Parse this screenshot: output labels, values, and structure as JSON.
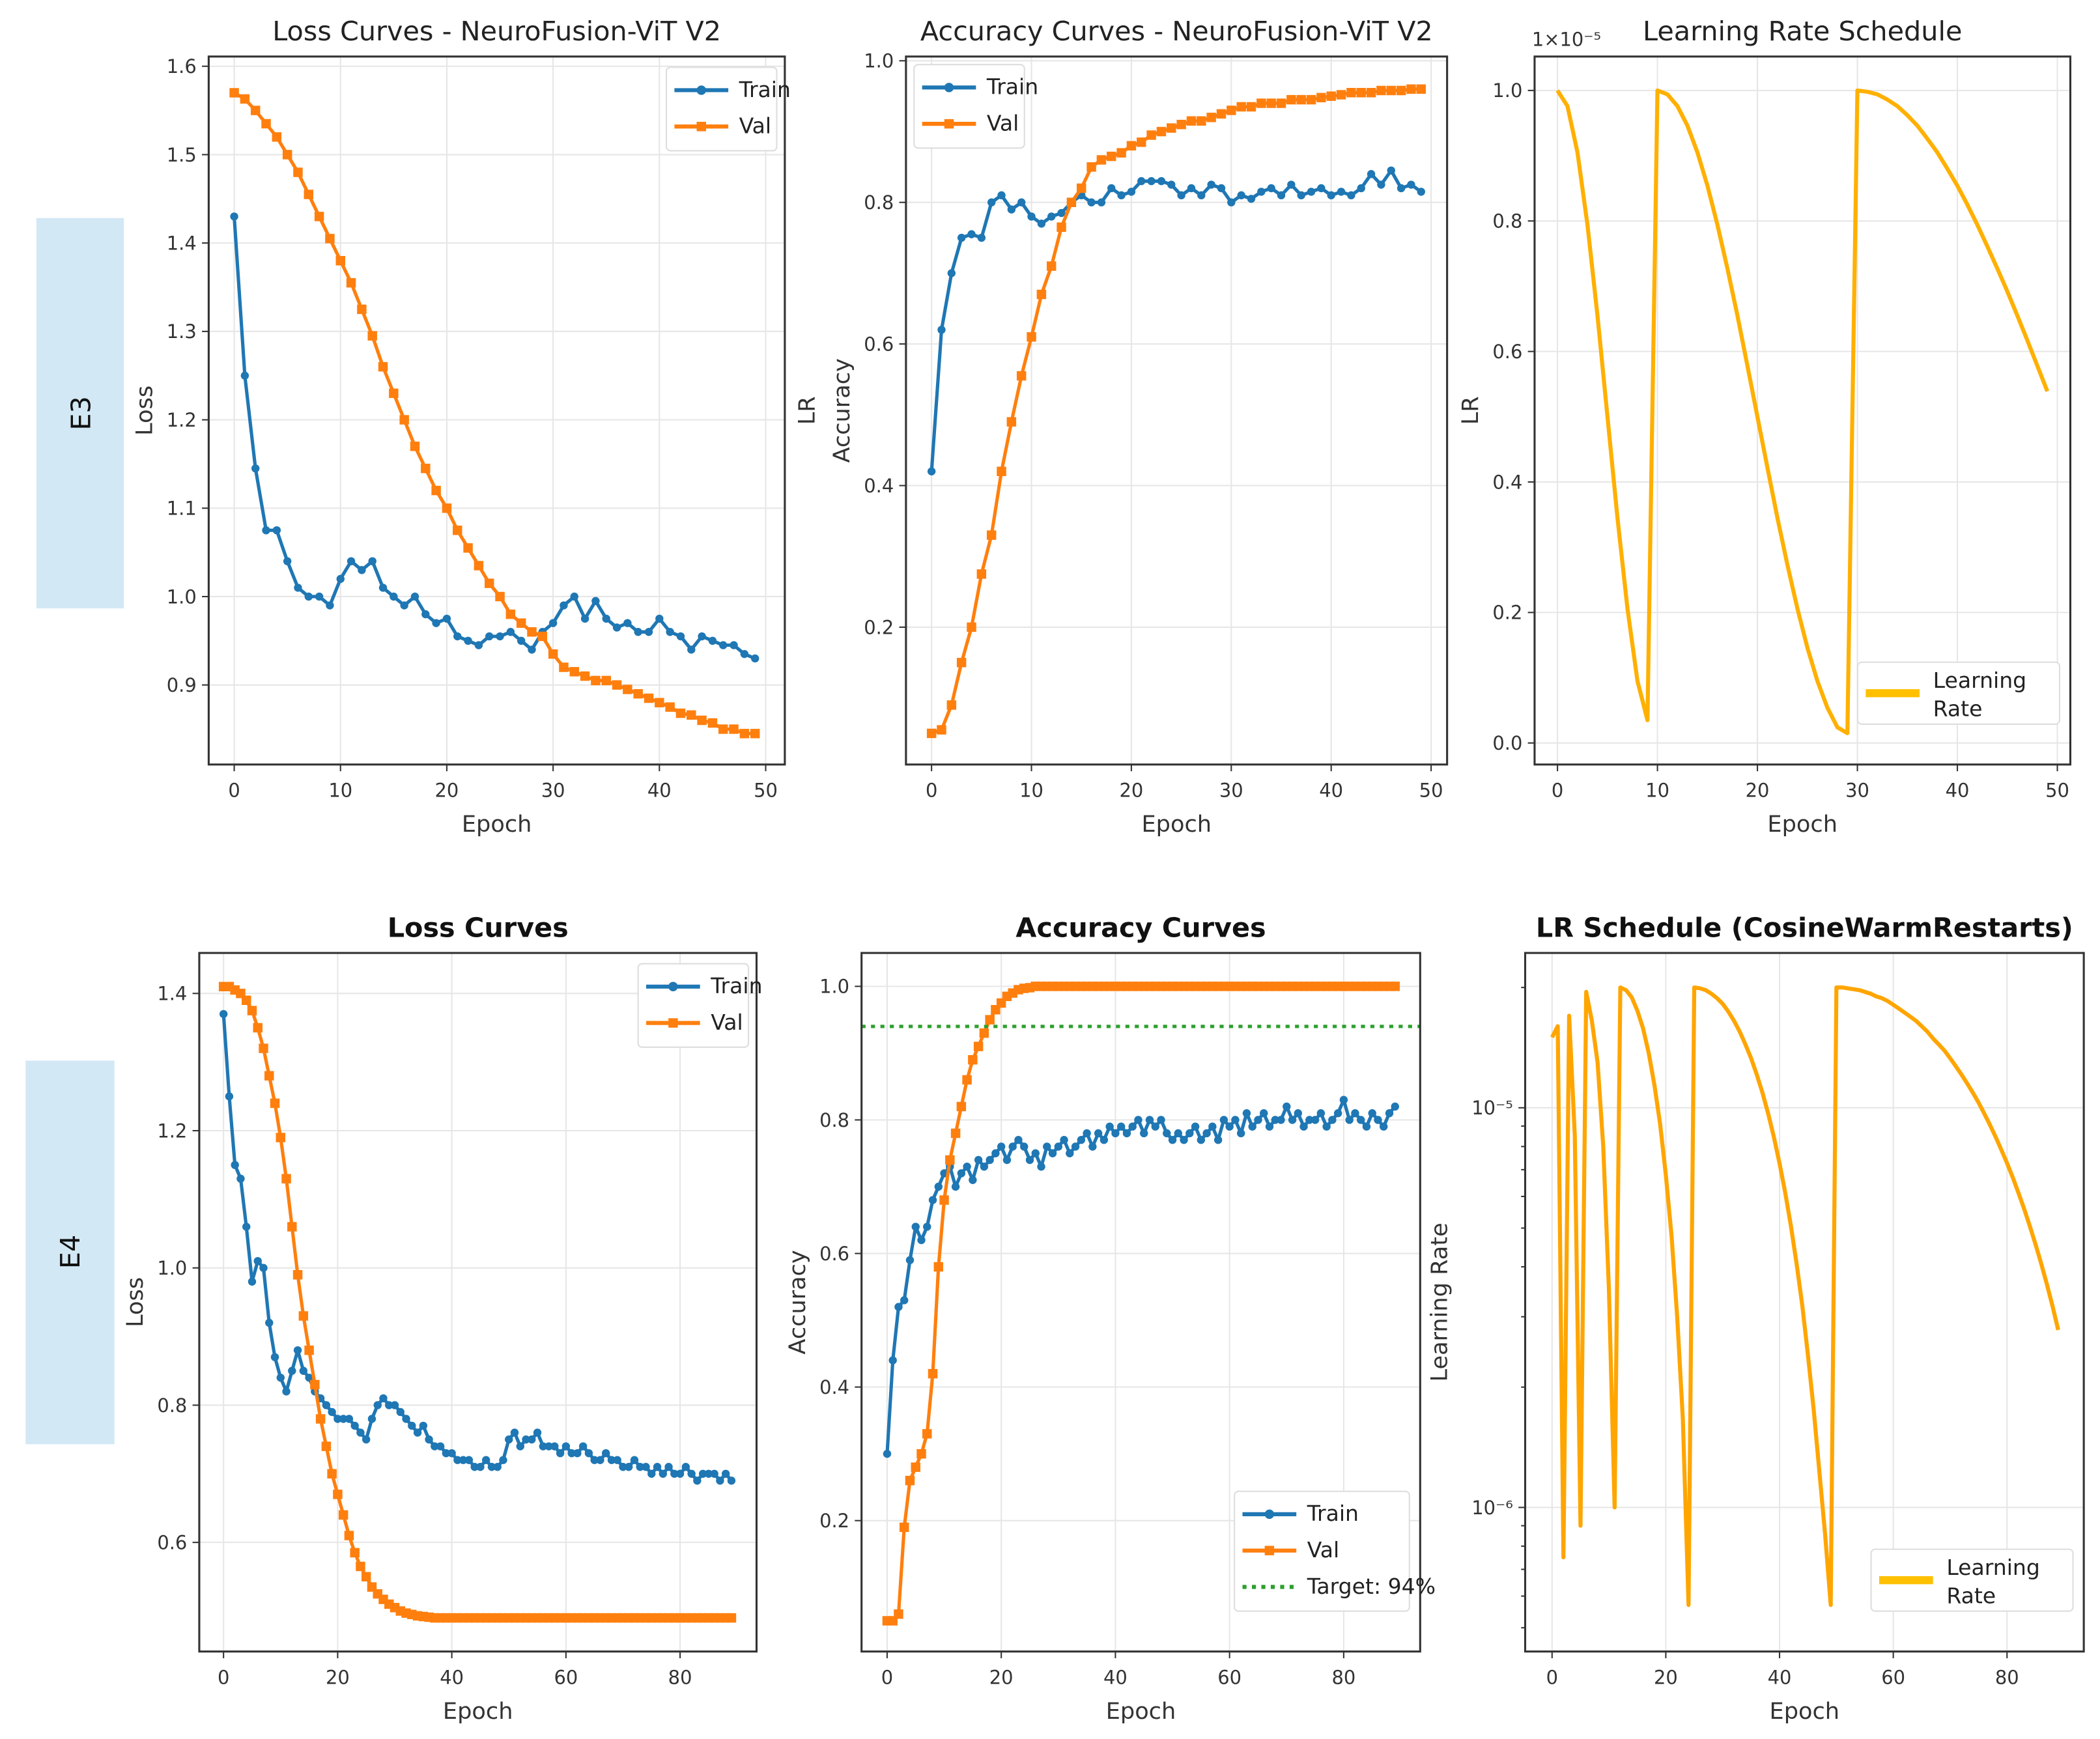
{
  "row_labels": [
    "E3",
    "E4"
  ],
  "chart_data": [
    {
      "type": "line",
      "title": "Loss Curves - NeuroFusion-ViT V2",
      "title_bold": false,
      "xlabel": "Epoch",
      "ylabel": [
        "Loss"
      ],
      "xlim": [
        -2.4,
        51.8
      ],
      "ylim": [
        0.81,
        1.611
      ],
      "xticks": [
        0,
        10,
        20,
        30,
        40,
        50
      ],
      "xtick_labels": [
        "0",
        "10",
        "20",
        "30",
        "40",
        "50"
      ],
      "yticks": [
        0.9,
        1.0,
        1.1,
        1.2,
        1.3,
        1.4,
        1.5,
        1.6
      ],
      "ytick_labels": [
        "0.9",
        "1.0",
        "1.1",
        "1.2",
        "1.3",
        "1.4",
        "1.5",
        "1.6"
      ],
      "grid": true,
      "legend": "top-right",
      "series": [
        {
          "name": "Train",
          "color": "#1f77b4",
          "marker": "circle",
          "values": [
            1.43,
            1.25,
            1.145,
            1.075,
            1.075,
            1.04,
            1.01,
            1.0,
            1.0,
            0.99,
            1.02,
            1.04,
            1.03,
            1.04,
            1.01,
            1.0,
            0.99,
            1.0,
            0.98,
            0.97,
            0.975,
            0.955,
            0.95,
            0.945,
            0.955,
            0.955,
            0.96,
            0.95,
            0.94,
            0.96,
            0.97,
            0.99,
            1.0,
            0.975,
            0.995,
            0.975,
            0.965,
            0.97,
            0.96,
            0.96,
            0.975,
            0.96,
            0.955,
            0.94,
            0.955,
            0.95,
            0.945,
            0.945,
            0.935,
            0.93
          ]
        },
        {
          "name": "Val",
          "color": "#ff7f0e",
          "marker": "square",
          "values": [
            1.57,
            1.563,
            1.55,
            1.535,
            1.52,
            1.5,
            1.48,
            1.455,
            1.43,
            1.405,
            1.38,
            1.355,
            1.325,
            1.295,
            1.26,
            1.23,
            1.2,
            1.17,
            1.145,
            1.12,
            1.1,
            1.075,
            1.055,
            1.035,
            1.015,
            1.0,
            0.98,
            0.97,
            0.96,
            0.955,
            0.935,
            0.92,
            0.915,
            0.91,
            0.905,
            0.905,
            0.9,
            0.895,
            0.89,
            0.885,
            0.88,
            0.875,
            0.868,
            0.866,
            0.86,
            0.857,
            0.85,
            0.85,
            0.845,
            0.845
          ]
        }
      ]
    },
    {
      "type": "line",
      "title": "Accuracy Curves - NeuroFusion-ViT V2",
      "title_bold": false,
      "xlabel": "Epoch",
      "ylabel": [
        "LR",
        "Accuracy"
      ],
      "xlim": [
        -2.56,
        51.6
      ],
      "ylim": [
        0.006,
        1.006
      ],
      "xticks": [
        0,
        10,
        20,
        30,
        40,
        50
      ],
      "xtick_labels": [
        "0",
        "10",
        "20",
        "30",
        "40",
        "50"
      ],
      "yticks": [
        0.2,
        0.4,
        0.6,
        0.8,
        1.0
      ],
      "ytick_labels": [
        "0.2",
        "0.4",
        "0.6",
        "0.8",
        "1.0"
      ],
      "grid": true,
      "legend": "top-left",
      "series": [
        {
          "name": "Train",
          "color": "#1f77b4",
          "marker": "circle",
          "values": [
            0.42,
            0.62,
            0.7,
            0.75,
            0.755,
            0.75,
            0.8,
            0.81,
            0.79,
            0.8,
            0.78,
            0.77,
            0.78,
            0.785,
            0.8,
            0.81,
            0.8,
            0.8,
            0.82,
            0.81,
            0.815,
            0.83,
            0.83,
            0.83,
            0.825,
            0.81,
            0.82,
            0.81,
            0.825,
            0.82,
            0.8,
            0.81,
            0.805,
            0.815,
            0.82,
            0.81,
            0.825,
            0.81,
            0.815,
            0.82,
            0.81,
            0.815,
            0.81,
            0.82,
            0.84,
            0.825,
            0.845,
            0.82,
            0.825,
            0.815
          ]
        },
        {
          "name": "Val",
          "color": "#ff7f0e",
          "marker": "square",
          "values": [
            0.05,
            0.055,
            0.09,
            0.15,
            0.2,
            0.275,
            0.33,
            0.42,
            0.49,
            0.555,
            0.61,
            0.67,
            0.71,
            0.765,
            0.8,
            0.82,
            0.85,
            0.86,
            0.865,
            0.87,
            0.88,
            0.885,
            0.895,
            0.9,
            0.905,
            0.91,
            0.915,
            0.915,
            0.92,
            0.925,
            0.93,
            0.935,
            0.935,
            0.94,
            0.94,
            0.94,
            0.945,
            0.945,
            0.945,
            0.948,
            0.95,
            0.952,
            0.955,
            0.955,
            0.955,
            0.958,
            0.958,
            0.958,
            0.96,
            0.96
          ]
        }
      ]
    },
    {
      "type": "line",
      "title": "Learning Rate Schedule",
      "title_bold": false,
      "xlabel": "Epoch",
      "ylabel": [
        "LR"
      ],
      "offset_text": "1×10⁻⁵",
      "xlim": [
        -2.29,
        51.3
      ],
      "ylim": [
        -0.033,
        1.052
      ],
      "xticks": [
        0,
        10,
        20,
        30,
        40,
        50
      ],
      "xtick_labels": [
        "0",
        "10",
        "20",
        "30",
        "40",
        "50"
      ],
      "yticks": [
        0.0,
        0.2,
        0.4,
        0.6,
        0.8,
        1.0
      ],
      "ytick_labels": [
        "0.0",
        "0.2",
        "0.4",
        "0.6",
        "0.8",
        "1.0"
      ],
      "grid": true,
      "legend": "lower-right",
      "series": [
        {
          "name": "Learning Rate",
          "color": "#ffb000",
          "marker": "none",
          "values": [
            1,
            0.976,
            0.905,
            0.794,
            0.655,
            0.5,
            0.345,
            0.206,
            0.095,
            0.035,
            1,
            0.994,
            0.976,
            0.946,
            0.905,
            0.854,
            0.794,
            0.727,
            0.655,
            0.578,
            0.5,
            0.422,
            0.345,
            0.273,
            0.206,
            0.146,
            0.095,
            0.054,
            0.024,
            0.015,
            1,
            0.998,
            0.994,
            0.986,
            0.976,
            0.962,
            0.946,
            0.926,
            0.905,
            0.88,
            0.854,
            0.825,
            0.794,
            0.761,
            0.727,
            0.692,
            0.655,
            0.617,
            0.578,
            0.539
          ]
        }
      ]
    },
    {
      "type": "line",
      "title": "Loss Curves",
      "title_bold": true,
      "xlabel": "Epoch",
      "ylabel": [
        "Loss"
      ],
      "xlim": [
        -4.25,
        93.4
      ],
      "ylim": [
        0.441,
        1.459
      ],
      "xticks": [
        0,
        20,
        40,
        60,
        80
      ],
      "xtick_labels": [
        "0",
        "20",
        "40",
        "60",
        "80"
      ],
      "yticks": [
        0.6,
        0.8,
        1.0,
        1.2,
        1.4
      ],
      "ytick_labels": [
        "0.6",
        "0.8",
        "1.0",
        "1.2",
        "1.4"
      ],
      "grid": true,
      "legend": "top-right",
      "series": [
        {
          "name": "Train",
          "color": "#1f77b4",
          "marker": "circle",
          "values": [
            1.37,
            1.25,
            1.15,
            1.13,
            1.06,
            0.98,
            1.01,
            1.0,
            0.92,
            0.87,
            0.84,
            0.82,
            0.85,
            0.88,
            0.85,
            0.84,
            0.82,
            0.81,
            0.8,
            0.79,
            0.78,
            0.78,
            0.78,
            0.77,
            0.76,
            0.75,
            0.78,
            0.8,
            0.81,
            0.8,
            0.8,
            0.79,
            0.78,
            0.77,
            0.76,
            0.77,
            0.75,
            0.74,
            0.74,
            0.73,
            0.73,
            0.72,
            0.72,
            0.72,
            0.71,
            0.71,
            0.72,
            0.71,
            0.71,
            0.72,
            0.75,
            0.76,
            0.74,
            0.75,
            0.75,
            0.76,
            0.74,
            0.74,
            0.74,
            0.73,
            0.74,
            0.73,
            0.73,
            0.74,
            0.73,
            0.72,
            0.72,
            0.73,
            0.72,
            0.72,
            0.71,
            0.71,
            0.72,
            0.71,
            0.71,
            0.7,
            0.71,
            0.7,
            0.71,
            0.7,
            0.7,
            0.71,
            0.7,
            0.69,
            0.7,
            0.7,
            0.7,
            0.69,
            0.7,
            0.69
          ]
        },
        {
          "name": "Val",
          "color": "#ff7f0e",
          "marker": "square",
          "values": [
            1.41,
            1.41,
            1.405,
            1.4,
            1.39,
            1.375,
            1.35,
            1.32,
            1.28,
            1.24,
            1.19,
            1.13,
            1.06,
            0.99,
            0.93,
            0.88,
            0.83,
            0.78,
            0.74,
            0.7,
            0.67,
            0.64,
            0.61,
            0.585,
            0.565,
            0.55,
            0.535,
            0.525,
            0.517,
            0.51,
            0.505,
            0.5,
            0.497,
            0.495,
            0.493,
            0.492,
            0.491,
            0.49,
            0.49,
            0.49,
            0.49,
            0.49,
            0.49,
            0.49,
            0.49,
            0.49,
            0.49,
            0.49,
            0.49,
            0.49,
            0.49,
            0.49,
            0.49,
            0.49,
            0.49,
            0.49,
            0.49,
            0.49,
            0.49,
            0.49,
            0.49,
            0.49,
            0.49,
            0.49,
            0.49,
            0.49,
            0.49,
            0.49,
            0.49,
            0.49,
            0.49,
            0.49,
            0.49,
            0.49,
            0.49,
            0.49,
            0.49,
            0.49,
            0.49,
            0.49,
            0.49,
            0.49,
            0.49,
            0.49,
            0.49,
            0.49,
            0.49,
            0.49,
            0.49,
            0.49
          ]
        }
      ]
    },
    {
      "type": "line",
      "title": "Accuracy Curves",
      "title_bold": true,
      "xlabel": "Epoch",
      "ylabel": [
        "Accuracy"
      ],
      "xlim": [
        -4.48,
        93.4
      ],
      "ylim": [
        0.004,
        1.05
      ],
      "xticks": [
        0,
        20,
        40,
        60,
        80
      ],
      "xtick_labels": [
        "0",
        "20",
        "40",
        "60",
        "80"
      ],
      "yticks": [
        0.2,
        0.4,
        0.6,
        0.8,
        1.0
      ],
      "ytick_labels": [
        "0.2",
        "0.4",
        "0.6",
        "0.8",
        "1.0"
      ],
      "grid": true,
      "legend": "lower-right",
      "series": [
        {
          "name": "Train",
          "color": "#1f77b4",
          "marker": "circle",
          "values": [
            0.3,
            0.44,
            0.52,
            0.53,
            0.59,
            0.64,
            0.62,
            0.64,
            0.68,
            0.7,
            0.72,
            0.73,
            0.7,
            0.72,
            0.73,
            0.71,
            0.74,
            0.73,
            0.74,
            0.75,
            0.76,
            0.74,
            0.76,
            0.77,
            0.76,
            0.74,
            0.75,
            0.73,
            0.76,
            0.75,
            0.76,
            0.77,
            0.75,
            0.76,
            0.77,
            0.78,
            0.76,
            0.78,
            0.77,
            0.79,
            0.78,
            0.79,
            0.78,
            0.79,
            0.8,
            0.78,
            0.8,
            0.79,
            0.8,
            0.78,
            0.77,
            0.78,
            0.77,
            0.78,
            0.79,
            0.77,
            0.78,
            0.79,
            0.77,
            0.8,
            0.79,
            0.8,
            0.78,
            0.81,
            0.79,
            0.8,
            0.81,
            0.79,
            0.8,
            0.8,
            0.82,
            0.8,
            0.81,
            0.79,
            0.8,
            0.8,
            0.81,
            0.79,
            0.8,
            0.81,
            0.83,
            0.8,
            0.81,
            0.8,
            0.79,
            0.81,
            0.8,
            0.79,
            0.81,
            0.82
          ]
        },
        {
          "name": "Val",
          "color": "#ff7f0e",
          "marker": "square",
          "values": [
            0.05,
            0.05,
            0.06,
            0.19,
            0.26,
            0.28,
            0.3,
            0.33,
            0.42,
            0.58,
            0.68,
            0.74,
            0.78,
            0.82,
            0.86,
            0.89,
            0.91,
            0.93,
            0.95,
            0.965,
            0.975,
            0.985,
            0.99,
            0.995,
            0.997,
            0.998,
            1,
            1,
            1,
            1,
            1,
            1,
            1,
            1,
            1,
            1,
            1,
            1,
            1,
            1,
            1,
            1,
            1,
            1,
            1,
            1,
            1,
            1,
            1,
            1,
            1,
            1,
            1,
            1,
            1,
            1,
            1,
            1,
            1,
            1,
            1,
            1,
            1,
            1,
            1,
            1,
            1,
            1,
            1,
            1,
            1,
            1,
            1,
            1,
            1,
            1,
            1,
            1,
            1,
            1,
            1,
            1,
            1,
            1,
            1,
            1,
            1,
            1,
            1,
            1
          ]
        },
        {
          "name": "Target: 94%",
          "color": "#2ca02c",
          "marker": "none",
          "style": "dotted",
          "hline": 0.94
        }
      ]
    },
    {
      "type": "line",
      "title": "LR Schedule (CosineWarmRestarts)",
      "title_bold": true,
      "xlabel": "Epoch",
      "ylabel": [
        "Learning Rate"
      ],
      "yscale": "log",
      "value_scale": 1e-06,
      "xlim": [
        -4.73,
        93.5
      ],
      "ylim": [
        4.36e-07,
        2.44e-05
      ],
      "xticks": [
        0,
        20,
        40,
        60,
        80
      ],
      "xtick_labels": [
        "0",
        "20",
        "40",
        "60",
        "80"
      ],
      "yticks": [
        1e-06,
        1e-05
      ],
      "ytick_labels": [
        "10⁻⁶",
        "10⁻⁵"
      ],
      "grid": true,
      "legend": "lower-right",
      "series": [
        {
          "name": "Learning Rate",
          "color": "#ffa500",
          "marker": "none",
          "values": [
            15.0,
            16.0,
            0.75,
            17.0,
            8.5,
            0.9,
            19.5,
            16.5,
            13.0,
            8.0,
            3.5,
            1.0,
            20.0,
            19.7,
            18.9,
            17.5,
            15.8,
            13.7,
            11.4,
            9.1,
            6.8,
            4.8,
            3.0,
            1.66,
            0.57,
            20.0,
            19.9,
            19.7,
            19.3,
            18.8,
            18.2,
            17.4,
            16.5,
            15.5,
            14.4,
            13.3,
            12.1,
            10.9,
            9.67,
            8.45,
            7.26,
            6.13,
            5.06,
            4.07,
            3.2,
            2.4,
            1.76,
            1.23,
            0.86,
            0.57,
            20.0,
            20.0,
            19.9,
            19.8,
            19.7,
            19.5,
            19.3,
            19.0,
            18.8,
            18.5,
            18.1,
            17.7,
            17.3,
            16.9,
            16.5,
            16.0,
            15.5,
            14.9,
            14.4,
            13.9,
            13.3,
            12.7,
            12.1,
            11.5,
            10.9,
            10.3,
            9.67,
            9.06,
            8.45,
            7.85,
            7.27,
            6.7,
            6.13,
            5.59,
            5.06,
            4.56,
            4.08,
            3.62,
            3.19,
            2.78
          ]
        }
      ]
    }
  ]
}
